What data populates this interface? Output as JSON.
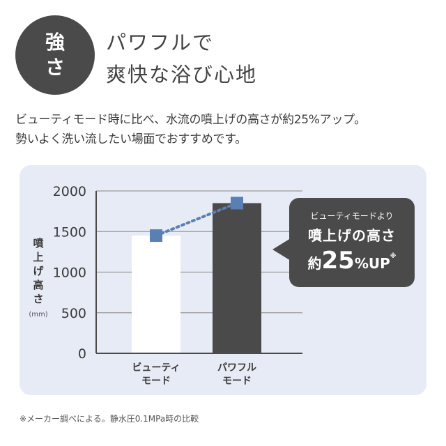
{
  "badge": {
    "line1": "強",
    "line2": "さ"
  },
  "headline": {
    "line1": "パワフルで",
    "line2": "爽快な浴び心地"
  },
  "description": {
    "line1": "ビューティモード時に比べ、水流の噴上げの高さが約25%アップ。",
    "line2": "勢いよく洗い流したい場面でおすすめです。"
  },
  "chart_data": {
    "type": "bar",
    "categories": [
      "ビューティ\nモード",
      "パワフル\nモード"
    ],
    "values": [
      1450,
      1850
    ],
    "ylabel": "噴上げ高さ",
    "yunit": "(mm)",
    "ylim": [
      0,
      2000
    ],
    "yticks": [
      0,
      500,
      1000,
      1500,
      2000
    ],
    "grid": true,
    "bar_colors": [
      "#ffffff",
      "#4a4a4a"
    ],
    "marker_color": "#5a7fb3",
    "connector": "dotted"
  },
  "callout": {
    "line1": "ビューティモードより",
    "line2": "噴上げの高さ",
    "prefix": "約",
    "number": "25",
    "unit": "%UP",
    "note": "※"
  },
  "footnote": "※メーカー調べによる。静水圧0.1MPa時の比較"
}
